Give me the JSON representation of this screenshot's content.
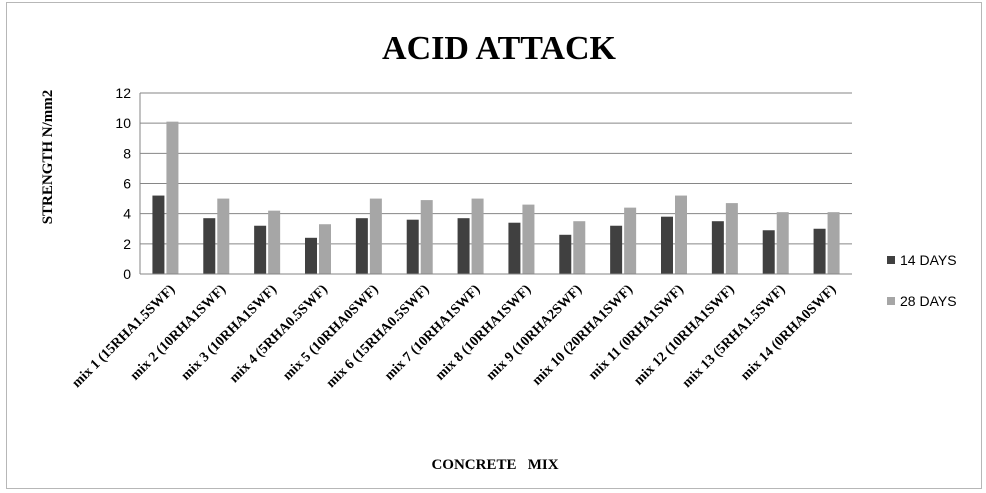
{
  "chart_data": {
    "type": "bar",
    "title": "ACID ATTACK",
    "xlabel": "CONCRETE   MIX",
    "ylabel": "STRENGTH  N/mm2",
    "ylim": [
      0,
      12
    ],
    "yticks": [
      0,
      2,
      4,
      6,
      8,
      10,
      12
    ],
    "grid": true,
    "legend_position": "right",
    "categories": [
      "mix 1 (15RHA1.5SWF)",
      "mix 2 (10RHA1SWF)",
      "mix 3 (10RHA1SWF)",
      "mix 4 (5RHA0.5SWF)",
      "mix 5 (10RHA0SWF)",
      "mix 6 (15RHA0.5SWF)",
      "mix 7 (10RHA1SWF)",
      "mix 8 (10RHA1SWF)",
      "mix 9 (10RHA2SWF)",
      "mix 10 (20RHA1SWF)",
      "mix 11 (0RHA1SWF)",
      "mix 12 (10RHA1SWF)",
      "mix 13 (5RHA1.5SWF)",
      "mix 14 (0RHA0SWF)"
    ],
    "series": [
      {
        "name": "14 DAYS",
        "color": "#404040",
        "values": [
          5.2,
          3.7,
          3.2,
          2.4,
          3.7,
          3.6,
          3.7,
          3.4,
          2.6,
          3.2,
          3.8,
          3.5,
          2.9,
          3.0
        ]
      },
      {
        "name": "28 DAYS",
        "color": "#a6a6a6",
        "values": [
          10.1,
          5.0,
          4.2,
          3.3,
          5.0,
          4.9,
          5.0,
          4.6,
          3.5,
          4.4,
          5.2,
          4.7,
          4.1,
          4.1
        ]
      }
    ]
  }
}
